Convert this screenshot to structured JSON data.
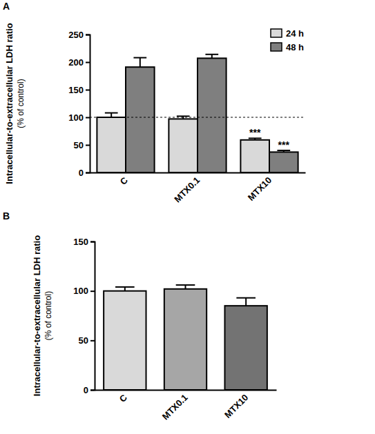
{
  "chart_data": [
    {
      "type": "bar",
      "title": "A",
      "ylabel": "Intracellular-to-extracellular LDH ratio",
      "ylabel_sub": "(% of control)",
      "categories": [
        "C",
        "MTX0.1",
        "MTX10"
      ],
      "series": [
        {
          "name": "24 h",
          "color": "#d9d9d9",
          "values": [
            100,
            97,
            59
          ],
          "errors": [
            8,
            5,
            3
          ]
        },
        {
          "name": "48 h",
          "color": "#7f7f7f",
          "values": [
            191,
            207,
            37
          ],
          "errors": [
            17,
            7,
            3
          ]
        }
      ],
      "hline": 100,
      "annotations": [
        {
          "text": "***",
          "category": "MTX10",
          "series": "24 h"
        },
        {
          "text": "***",
          "category": "MTX10",
          "series": "48 h"
        }
      ],
      "legend": "top-right",
      "ylim": [
        0,
        250
      ],
      "yticks": [
        0,
        50,
        100,
        150,
        200,
        250
      ]
    },
    {
      "type": "bar",
      "title": "B",
      "ylabel": "Intracellular-to-extracellular LDH ratio",
      "ylabel_sub": "(% of control)",
      "categories": [
        "C",
        "MTX0.1",
        "MTX10"
      ],
      "values": [
        100,
        102,
        85
      ],
      "errors": [
        4,
        4,
        8
      ],
      "colors": [
        "#d9d9d9",
        "#a6a6a6",
        "#737373"
      ],
      "ylim": [
        0,
        150
      ],
      "yticks": [
        0,
        50,
        100,
        150
      ]
    }
  ]
}
